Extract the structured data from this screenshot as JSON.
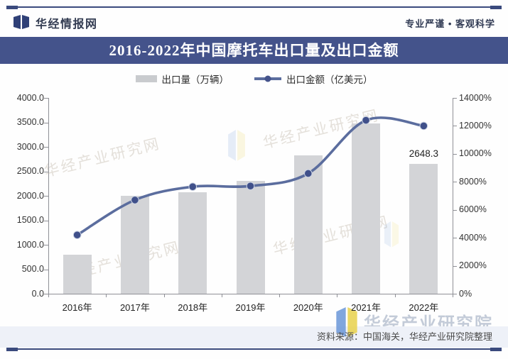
{
  "header": {
    "brand": "华经情报网",
    "tagline": "专业严谨 • 客观科学"
  },
  "title_bar": {
    "title": "2016-2022年中国摩托车出口量及出口金额"
  },
  "chart_data": {
    "type": "bar+line",
    "title": "2016-2022年中国摩托车出口量及出口金额",
    "categories": [
      "2016年",
      "2017年",
      "2018年",
      "2019年",
      "2020年",
      "2021年",
      "2022年"
    ],
    "series": [
      {
        "name": "出口量（万辆）",
        "type": "bar",
        "axis": "left",
        "values": [
          800,
          2000,
          2070,
          2300,
          2820,
          3480,
          2648.3
        ]
      },
      {
        "name": "出口金额（亿美元）",
        "type": "line",
        "axis": "right",
        "values": [
          4200,
          6700,
          7650,
          7700,
          8600,
          12400,
          12000
        ]
      }
    ],
    "left_axis": {
      "min": 0,
      "max": 4000,
      "step": 500,
      "tick_labels": [
        "4000.0",
        "3500.0",
        "3000.0",
        "2500.0",
        "2000.0",
        "1500.0",
        "1000.0",
        "500.0",
        "0.0"
      ]
    },
    "right_axis": {
      "min": 0,
      "max": 14000,
      "step": 2000,
      "unit": "%",
      "tick_labels": [
        "14000%",
        "12000%",
        "10000%",
        "8000%",
        "6000%",
        "4000%",
        "2000%",
        "0%"
      ]
    },
    "annotation": {
      "text": "2648.3",
      "category": "2022年",
      "series": "出口量（万辆）"
    },
    "grid": false,
    "legend_position": "top",
    "colors": {
      "bar": "#d3d4d7",
      "line": "#5b6d9e",
      "marker": "#40508a",
      "title_bar": "#44538b"
    }
  },
  "watermarks": {
    "diagonal_text": "华经产业研究网",
    "brand_text": "华经产业研究院",
    "brand_url": "www.huaon.com"
  },
  "footer": {
    "source": "资料来源：中国海关，华经产业研究院整理"
  }
}
